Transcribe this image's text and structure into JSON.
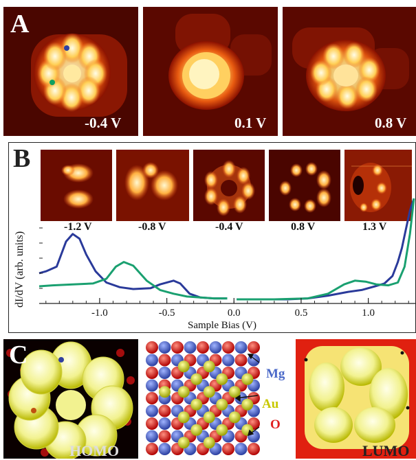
{
  "panels": {
    "a": {
      "letter": "A",
      "images": [
        {
          "bias": "-0.4 V"
        },
        {
          "bias": "0.1 V"
        },
        {
          "bias": "0.8 V"
        }
      ]
    },
    "b": {
      "letter": "B",
      "maps": [
        "-1.2 V",
        "-0.8 V",
        "-0.4 V",
        "0.8 V",
        "1.3 V"
      ],
      "ylabel": "dI/dV (arb. units)",
      "xlabel": "Sample Bias (V)"
    },
    "c": {
      "letter": "C",
      "homo": "HOMO",
      "lumo": "LUMO",
      "legend": {
        "mg": "Mg",
        "au": "Au",
        "o": "O"
      },
      "colors": {
        "mg": "#4a68c8",
        "au": "#c8c800",
        "o": "#e02020"
      }
    }
  },
  "chart_data": {
    "type": "line",
    "xlabel": "Sample Bias (V)",
    "ylabel": "dI/dV (arb. units)",
    "xlim": [
      -1.45,
      1.35
    ],
    "xticks": [
      "-1.0",
      "-0.5",
      "0.0",
      "0.5",
      "1.0"
    ],
    "xtick_values": [
      -1.0,
      -0.5,
      0.0,
      0.5,
      1.0
    ],
    "series": [
      {
        "color": "#2a3a9a",
        "segments": [
          [
            [
              -1.45,
              0.28
            ],
            [
              -1.4,
              0.3
            ],
            [
              -1.32,
              0.35
            ],
            [
              -1.25,
              0.62
            ],
            [
              -1.2,
              0.7
            ],
            [
              -1.15,
              0.65
            ],
            [
              -1.1,
              0.48
            ],
            [
              -1.03,
              0.3
            ],
            [
              -0.95,
              0.18
            ],
            [
              -0.85,
              0.13
            ],
            [
              -0.75,
              0.11
            ],
            [
              -0.62,
              0.12
            ],
            [
              -0.55,
              0.16
            ],
            [
              -0.45,
              0.2
            ],
            [
              -0.4,
              0.17
            ],
            [
              -0.33,
              0.06
            ],
            [
              -0.25,
              0.02
            ],
            [
              -0.15,
              0.01
            ],
            [
              -0.05,
              0.01
            ]
          ],
          [
            [
              0.02,
              0.0
            ],
            [
              0.2,
              0.0
            ],
            [
              0.4,
              0.0
            ],
            [
              0.55,
              0.01
            ],
            [
              0.7,
              0.04
            ],
            [
              0.85,
              0.08
            ],
            [
              0.95,
              0.1
            ],
            [
              1.05,
              0.14
            ],
            [
              1.12,
              0.17
            ],
            [
              1.18,
              0.25
            ],
            [
              1.22,
              0.4
            ],
            [
              1.25,
              0.55
            ],
            [
              1.28,
              0.75
            ],
            [
              1.31,
              0.95
            ],
            [
              1.34,
              1.08
            ]
          ]
        ]
      },
      {
        "color": "#1aa070",
        "segments": [
          [
            [
              -1.45,
              0.14
            ],
            [
              -1.35,
              0.15
            ],
            [
              -1.2,
              0.16
            ],
            [
              -1.05,
              0.17
            ],
            [
              -0.95,
              0.22
            ],
            [
              -0.88,
              0.35
            ],
            [
              -0.82,
              0.4
            ],
            [
              -0.75,
              0.36
            ],
            [
              -0.65,
              0.2
            ],
            [
              -0.55,
              0.1
            ],
            [
              -0.45,
              0.06
            ],
            [
              -0.35,
              0.03
            ],
            [
              -0.25,
              0.02
            ],
            [
              -0.15,
              0.01
            ],
            [
              -0.05,
              0.01
            ]
          ],
          [
            [
              0.02,
              0.0
            ],
            [
              0.3,
              0.0
            ],
            [
              0.55,
              0.01
            ],
            [
              0.7,
              0.06
            ],
            [
              0.82,
              0.16
            ],
            [
              0.9,
              0.2
            ],
            [
              0.98,
              0.19
            ],
            [
              1.06,
              0.16
            ],
            [
              1.15,
              0.15
            ],
            [
              1.22,
              0.18
            ],
            [
              1.27,
              0.35
            ],
            [
              1.31,
              0.7
            ],
            [
              1.34,
              1.08
            ]
          ]
        ]
      }
    ]
  }
}
